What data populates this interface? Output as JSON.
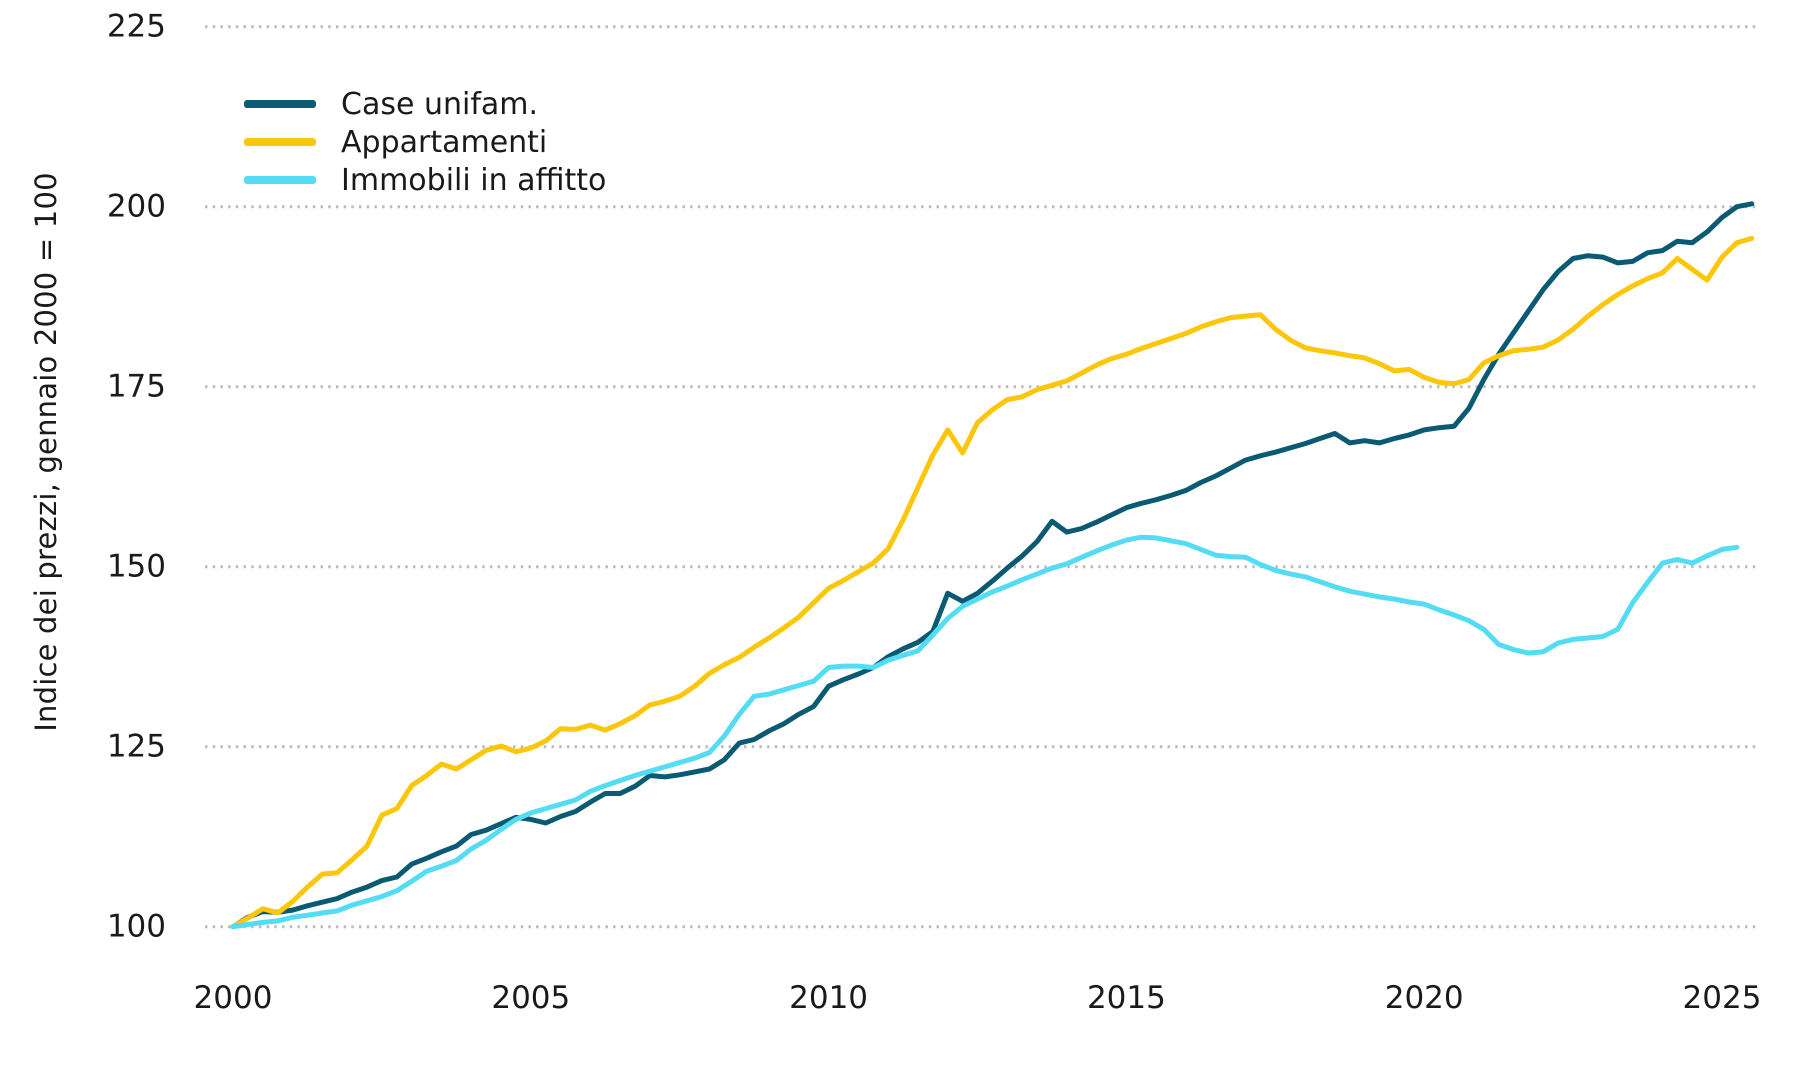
{
  "figure": {
    "background": "#ffffff",
    "text_color": "#1a1a1a",
    "grid_color": "#bcbcbc"
  },
  "chart_data": {
    "type": "line",
    "title": "",
    "xlabel": "",
    "ylabel": "Indice dei prezzi, gennaio 2000 = 100",
    "x_ticks": [
      2000,
      2005,
      2010,
      2015,
      2020,
      2025
    ],
    "y_ticks": [
      100,
      125,
      150,
      175,
      200,
      225
    ],
    "xlim": [
      2000,
      2025.5
    ],
    "ylim": [
      100,
      225
    ],
    "grid": "horizontal-dotted",
    "legend_position": "top-left",
    "x_start": 2000,
    "x_step": 0.25,
    "series": [
      {
        "name": "Case unifam.",
        "color": "#0b5a74",
        "values": [
          100.0,
          101.3,
          102.1,
          102.0,
          102.3,
          102.9,
          103.4,
          103.9,
          104.8,
          105.5,
          106.4,
          106.9,
          108.7,
          109.5,
          110.4,
          111.2,
          112.8,
          113.4,
          114.3,
          115.2,
          114.9,
          114.4,
          115.3,
          116.0,
          117.3,
          118.5,
          118.5,
          119.5,
          121.0,
          120.8,
          121.1,
          121.5,
          121.9,
          123.2,
          125.5,
          126.0,
          127.2,
          128.2,
          129.5,
          130.6,
          133.4,
          134.3,
          135.1,
          136.0,
          137.5,
          138.6,
          139.5,
          141.0,
          146.3,
          145.2,
          146.3,
          148.0,
          149.8,
          151.5,
          153.5,
          156.3,
          154.8,
          155.3,
          156.2,
          157.2,
          158.2,
          158.8,
          159.3,
          159.9,
          160.6,
          161.7,
          162.6,
          163.7,
          164.8,
          165.4,
          165.9,
          166.5,
          167.1,
          167.8,
          168.5,
          167.2,
          167.5,
          167.2,
          167.8,
          168.3,
          169.0,
          169.3,
          169.5,
          172.0,
          176.0,
          179.5,
          182.5,
          185.5,
          188.5,
          191.0,
          192.8,
          193.2,
          193.0,
          192.2,
          192.4,
          193.6,
          193.9,
          195.2,
          195.0,
          196.5,
          198.5,
          200.0,
          200.4
        ]
      },
      {
        "name": "Appartamenti",
        "color": "#fcc60a",
        "values": [
          100.0,
          101.2,
          102.5,
          101.9,
          103.5,
          105.5,
          107.3,
          107.5,
          109.3,
          111.2,
          115.5,
          116.4,
          119.6,
          121.0,
          122.6,
          121.9,
          123.2,
          124.5,
          125.1,
          124.3,
          124.8,
          125.8,
          127.5,
          127.4,
          128.0,
          127.3,
          128.2,
          129.3,
          130.8,
          131.3,
          132.0,
          133.4,
          135.2,
          136.4,
          137.4,
          138.8,
          140.1,
          141.5,
          143.0,
          145.0,
          147.0,
          148.1,
          149.3,
          150.5,
          152.5,
          156.5,
          161.0,
          165.5,
          169.0,
          165.8,
          170.0,
          171.8,
          173.2,
          173.6,
          174.6,
          175.2,
          175.8,
          176.9,
          178.0,
          178.9,
          179.5,
          180.3,
          181.0,
          181.7,
          182.4,
          183.3,
          184.0,
          184.6,
          184.8,
          185.0,
          183.0,
          181.5,
          180.4,
          180.0,
          179.7,
          179.3,
          179.0,
          178.2,
          177.2,
          177.4,
          176.3,
          175.6,
          175.4,
          176.0,
          178.3,
          179.3,
          180.0,
          180.2,
          180.5,
          181.5,
          183.0,
          184.8,
          186.4,
          187.8,
          189.0,
          190.0,
          190.8,
          192.8,
          191.3,
          189.8,
          193.0,
          195.0,
          195.6
        ]
      },
      {
        "name": "Immobili in affitto",
        "color": "#53dcf3",
        "values": [
          100.0,
          100.3,
          100.6,
          100.8,
          101.3,
          101.6,
          101.9,
          102.2,
          103.0,
          103.6,
          104.2,
          105.0,
          106.3,
          107.7,
          108.4,
          109.2,
          110.8,
          112.0,
          113.5,
          114.9,
          115.8,
          116.4,
          117.0,
          117.6,
          118.8,
          119.6,
          120.3,
          121.0,
          121.6,
          122.2,
          122.8,
          123.4,
          124.2,
          126.5,
          129.5,
          132.0,
          132.3,
          132.9,
          133.5,
          134.1,
          136.0,
          136.2,
          136.2,
          136.0,
          137.0,
          137.7,
          138.3,
          140.5,
          142.8,
          144.5,
          145.5,
          146.5,
          147.3,
          148.2,
          149.0,
          149.8,
          150.4,
          151.3,
          152.2,
          153.0,
          153.7,
          154.1,
          154.0,
          153.6,
          153.2,
          152.4,
          151.6,
          151.4,
          151.3,
          150.3,
          149.5,
          149.0,
          148.6,
          147.9,
          147.2,
          146.6,
          146.2,
          145.8,
          145.5,
          145.1,
          144.8,
          144.0,
          143.3,
          142.5,
          141.3,
          139.2,
          138.5,
          138.0,
          138.2,
          139.4,
          139.9,
          140.1,
          140.3,
          141.3,
          145.0,
          147.8,
          150.5,
          151.0,
          150.5,
          151.5,
          152.4,
          152.7
        ]
      }
    ]
  }
}
